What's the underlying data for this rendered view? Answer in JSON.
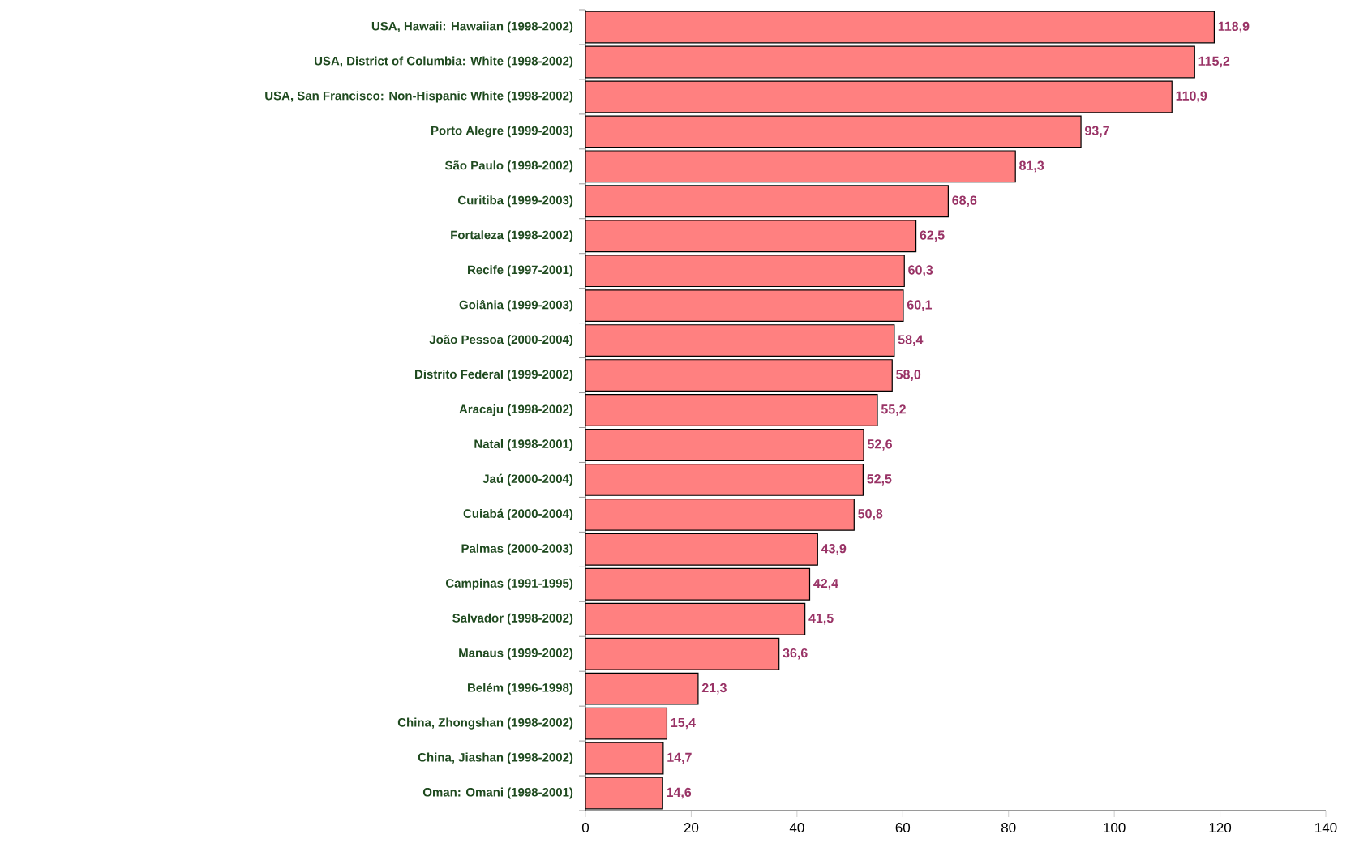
{
  "chart_data": {
    "type": "bar",
    "orientation": "horizontal",
    "categories": [
      "USA, Hawaii: Hawaiian (1998-2002)",
      "USA, District of Columbia: White (1998-2002)",
      "USA, San Francisco: Non-Hispanic White (1998-2002)",
      "Porto Alegre (1999-2003)",
      "São Paulo (1998-2002)",
      "Curitiba (1999-2003)",
      "Fortaleza (1998-2002)",
      "Recife (1997-2001)",
      "Goiânia (1999-2003)",
      "João Pessoa (2000-2004)",
      "Distrito Federal (1999-2002)",
      "Aracaju (1998-2002)",
      "Natal (1998-2001)",
      "Jaú (2000-2004)",
      "Cuiabá (2000-2004)",
      "Palmas (2000-2003)",
      "Campinas (1991-1995)",
      "Salvador (1998-2002)",
      "Manaus (1999-2002)",
      "Belém (1996-1998)",
      "China, Zhongshan (1998-2002)",
      "China, Jiashan (1998-2002)",
      "Oman: Omani (1998-2001)"
    ],
    "values": [
      118.9,
      115.2,
      110.9,
      93.7,
      81.3,
      68.6,
      62.5,
      60.3,
      60.1,
      58.4,
      58.0,
      55.2,
      52.6,
      52.5,
      50.8,
      43.9,
      42.4,
      41.5,
      36.6,
      21.3,
      15.4,
      14.7,
      14.6
    ],
    "value_labels": [
      "118,9",
      "115,2",
      "110,9",
      "93,7",
      "81,3",
      "68,6",
      "62,5",
      "60,3",
      "60,1",
      "58,4",
      "58,0",
      "55,2",
      "52,6",
      "52,5",
      "50,8",
      "43,9",
      "42,4",
      "41,5",
      "36,6",
      "21,3",
      "15,4",
      "14,7",
      "14,6"
    ],
    "color": "#ff8080",
    "xlim": [
      0,
      140
    ],
    "xticks": [
      0,
      20,
      40,
      60,
      80,
      100,
      120,
      140
    ]
  }
}
